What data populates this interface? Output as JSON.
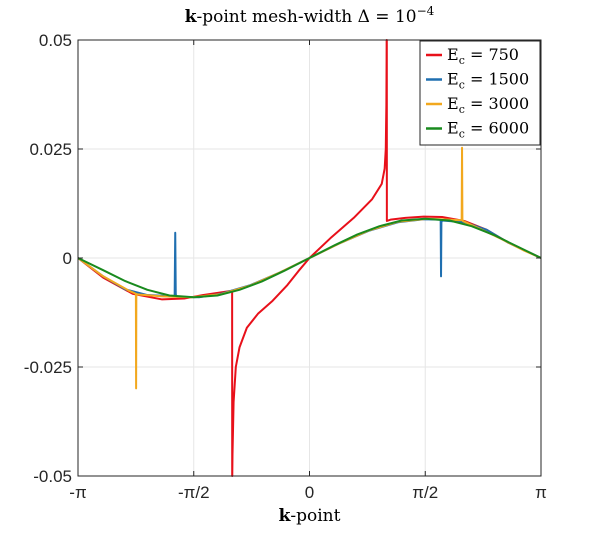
{
  "chart_data": {
    "type": "line",
    "title": {
      "bold": "k",
      "rest": "-point mesh-width Δ = 10",
      "sup": "−4"
    },
    "xlabel": {
      "bold": "k",
      "rest": "-point"
    },
    "ylabel": "",
    "xlim": [
      -3.14159,
      3.14159
    ],
    "ylim": [
      -0.05,
      0.05
    ],
    "grid": true,
    "legend_position": "top-right",
    "x_ticks": [
      {
        "value": -3.14159,
        "label": "-π"
      },
      {
        "value": -1.5708,
        "label": "-π/2"
      },
      {
        "value": 0,
        "label": "0"
      },
      {
        "value": 1.5708,
        "label": "π/2"
      },
      {
        "value": 3.14159,
        "label": "π"
      }
    ],
    "y_ticks": [
      {
        "value": 0.05,
        "label": "0.05"
      },
      {
        "value": 0.025,
        "label": "0.025"
      },
      {
        "value": 0,
        "label": "0"
      },
      {
        "value": -0.025,
        "label": "-0.025"
      },
      {
        "value": -0.05,
        "label": "-0.05"
      }
    ],
    "series": [
      {
        "name": "E",
        "name_sub": "c",
        "name_rest": " = 750",
        "color": "#e8101a",
        "x": [
          -3.1416,
          -2.8,
          -2.4,
          -2.0,
          -1.7,
          -1.45,
          -1.05,
          -1.049,
          -1.048,
          -1.045,
          -1.03,
          -1.0,
          -0.95,
          -0.85,
          -0.7,
          -0.5,
          -0.3,
          -0.15,
          0,
          0.3,
          0.6,
          0.85,
          0.98,
          1.02,
          1.035,
          1.043,
          1.046,
          1.047,
          1.048,
          1.049,
          1.05,
          1.1,
          1.3,
          1.55,
          1.8,
          2.1,
          2.4,
          2.7,
          3.1416
        ],
        "y": [
          0,
          -0.0045,
          -0.0082,
          -0.0095,
          -0.0093,
          -0.0085,
          -0.0075,
          -0.05,
          -0.05,
          -0.045,
          -0.033,
          -0.025,
          -0.0205,
          -0.016,
          -0.0128,
          -0.0098,
          -0.0062,
          -0.003,
          0,
          0.0048,
          0.0092,
          0.0135,
          0.017,
          0.0205,
          0.025,
          0.035,
          0.045,
          0.05,
          0.05,
          0.05,
          0.0085,
          0.0088,
          0.0092,
          0.0095,
          0.0094,
          0.0085,
          0.0065,
          0.0035,
          0
        ]
      },
      {
        "name": "E",
        "name_sub": "c",
        "name_rest": " = 1500",
        "color": "#1f6fb0",
        "x": [
          -3.1416,
          -2.8,
          -2.5,
          -2.2,
          -1.83,
          -1.822,
          -1.815,
          -1.81,
          -1.8,
          -1.5,
          -1.2,
          -0.8,
          -0.4,
          0,
          0.4,
          0.8,
          1.2,
          1.55,
          1.75,
          1.78,
          1.785,
          1.79,
          1.8,
          2.1,
          2.4,
          2.7,
          3.1416
        ],
        "y": [
          0,
          -0.0042,
          -0.0072,
          -0.0085,
          -0.0088,
          0.0058,
          -0.0082,
          -0.0088,
          -0.0089,
          -0.009,
          -0.0082,
          -0.0062,
          -0.0033,
          0,
          0.0033,
          0.0062,
          0.0082,
          0.0089,
          0.0088,
          0.0088,
          -0.0042,
          0.0082,
          0.0086,
          0.0082,
          0.0065,
          0.0035,
          0
        ]
      },
      {
        "name": "E",
        "name_sub": "c",
        "name_rest": " = 3000",
        "color": "#f2a81e",
        "x": [
          -3.1416,
          -2.8,
          -2.45,
          -2.356,
          -2.353,
          -2.35,
          -2.345,
          -2.3,
          -2.0,
          -1.6,
          -1.2,
          -0.8,
          -0.4,
          0,
          0.4,
          0.8,
          1.2,
          1.6,
          1.9,
          2.02,
          2.065,
          2.07,
          2.075,
          2.08,
          2.3,
          2.6,
          2.9,
          3.1416
        ],
        "y": [
          0,
          -0.0042,
          -0.0075,
          -0.0082,
          -0.0299,
          -0.0088,
          -0.0083,
          -0.0084,
          -0.0088,
          -0.009,
          -0.0083,
          -0.0063,
          -0.0033,
          0,
          0.0033,
          0.0063,
          0.0083,
          0.009,
          0.0088,
          0.0087,
          0.0087,
          0.0253,
          0.0087,
          0.0085,
          0.0068,
          0.0044,
          0.0018,
          0
        ]
      },
      {
        "name": "E",
        "name_sub": "c",
        "name_rest": " = 6000",
        "color": "#198a1e",
        "x": [
          -3.1416,
          -2.8,
          -2.5,
          -2.2,
          -1.9,
          -1.5708,
          -1.25,
          -0.95,
          -0.65,
          -0.35,
          0,
          0.35,
          0.65,
          0.95,
          1.25,
          1.5708,
          1.9,
          2.2,
          2.5,
          2.8,
          3.1416
        ],
        "y": [
          0,
          -0.0028,
          -0.0053,
          -0.0073,
          -0.0086,
          -0.009,
          -0.0086,
          -0.0073,
          -0.0054,
          -0.003,
          0,
          0.003,
          0.0054,
          0.0073,
          0.0086,
          0.009,
          0.0086,
          0.0073,
          0.0053,
          0.0028,
          0
        ]
      }
    ]
  }
}
